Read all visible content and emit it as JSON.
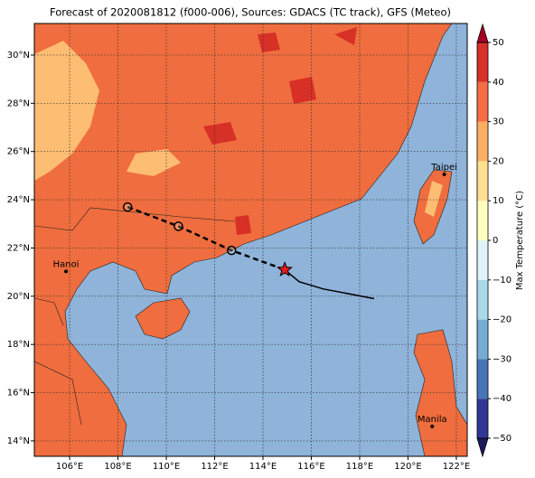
{
  "chart_data": {
    "type": "map",
    "title": "Forecast of 2020081812 (f000-006), Sources: GDACS (TC track), GFS (Meteo)",
    "xlim": [
      104.54,
      122.45
    ],
    "ylim": [
      13.36,
      31.31
    ],
    "xticks": [
      {
        "value": 106,
        "label": "106°E"
      },
      {
        "value": 108,
        "label": "108°E"
      },
      {
        "value": 110,
        "label": "110°E"
      },
      {
        "value": 112,
        "label": "112°E"
      },
      {
        "value": 114,
        "label": "114°E"
      },
      {
        "value": 116,
        "label": "116°E"
      },
      {
        "value": 118,
        "label": "118°E"
      },
      {
        "value": 120,
        "label": "120°E"
      },
      {
        "value": 122,
        "label": "122°E"
      }
    ],
    "yticks": [
      {
        "value": 14,
        "label": "14°N"
      },
      {
        "value": 16,
        "label": "16°N"
      },
      {
        "value": 18,
        "label": "18°N"
      },
      {
        "value": 20,
        "label": "20°N"
      },
      {
        "value": 22,
        "label": "22°N"
      },
      {
        "value": 24,
        "label": "24°N"
      },
      {
        "value": 26,
        "label": "26°N"
      },
      {
        "value": 28,
        "label": "28°N"
      },
      {
        "value": 30,
        "label": "30°N"
      }
    ],
    "grid": true,
    "cities": [
      {
        "name": "Hanoi",
        "lon": 105.85,
        "lat": 21.03
      },
      {
        "name": "Taipei",
        "lon": 121.5,
        "lat": 25.05
      },
      {
        "name": "Manila",
        "lon": 121.0,
        "lat": 14.6
      }
    ],
    "forecast_track": {
      "lon": [
        108.4,
        110.5,
        112.7,
        114.9
      ],
      "lat": [
        23.7,
        22.9,
        21.9,
        21.1
      ]
    },
    "past_track": {
      "lon": [
        114.9,
        115.5,
        116.5,
        118.6
      ],
      "lat": [
        21.1,
        20.6,
        20.3,
        19.9
      ]
    },
    "colorbar": {
      "label": "Max Temperature (°C)",
      "lim": [
        -50,
        50
      ],
      "ticks": [
        {
          "value": -50,
          "label": "−50"
        },
        {
          "value": -40,
          "label": "−40"
        },
        {
          "value": -30,
          "label": "−30"
        },
        {
          "value": -20,
          "label": "−20"
        },
        {
          "value": -10,
          "label": "−10"
        },
        0,
        10,
        20,
        30,
        40,
        50
      ],
      "colors": [
        "#313695",
        "#4575b4",
        "#74add1",
        "#abd9e9",
        "#e0f3f8",
        "#ffffbf",
        "#fee090",
        "#fdae61",
        "#f46d43",
        "#d73027"
      ],
      "extend_colors": [
        "#1a1a5e",
        "#a50026"
      ]
    }
  }
}
